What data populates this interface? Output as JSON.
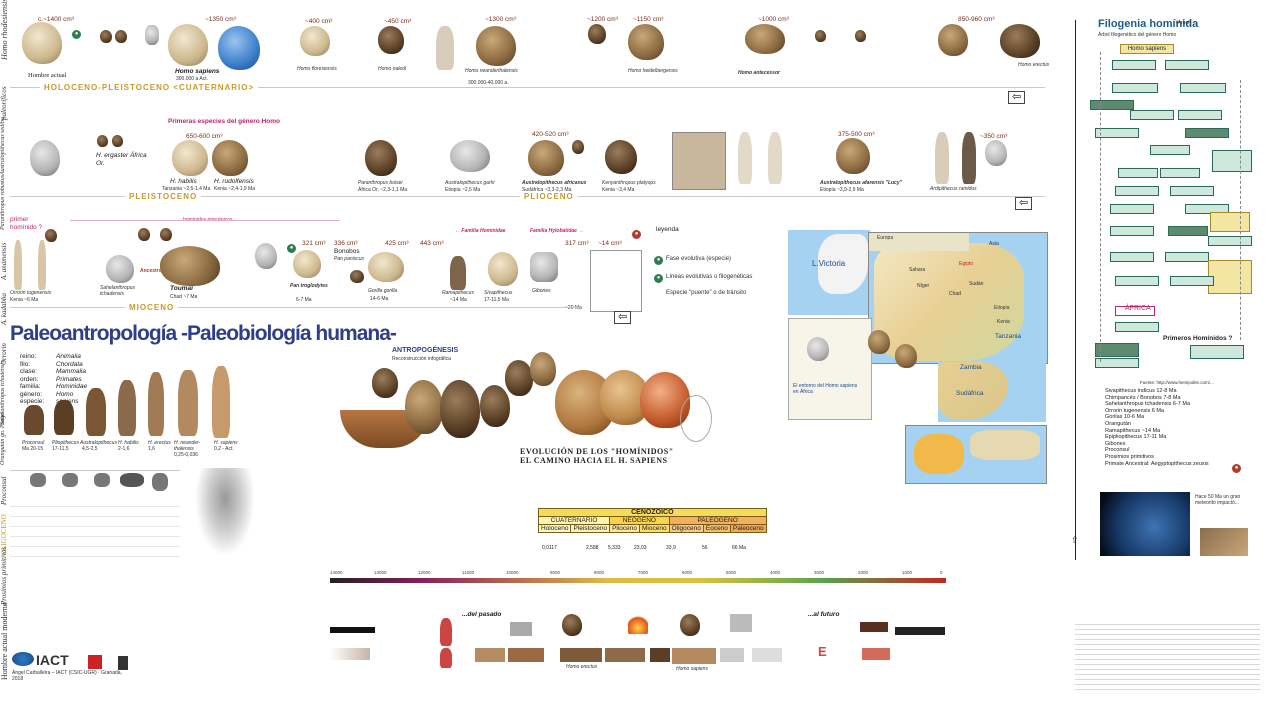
{
  "row1": {
    "items": [
      {
        "label": "Hombre actual",
        "size": "c.~1400 cm³"
      },
      {
        "label": "Homo sapiens",
        "size": "~1350 cm³",
        "date": "300.000 a Act."
      },
      {
        "label": "Homo floresiensis",
        "size": "~400 cm³"
      },
      {
        "label": "Homo naledi",
        "size": "~450 cm³"
      },
      {
        "label": "Homo neanderthalensis",
        "size": "~1300 cm³",
        "date": "300.000-40.000 a."
      },
      {
        "label": "Homo rhodesiensis",
        "size": "~1200 cm³"
      },
      {
        "label": "Homo heidelbergensis",
        "size": "~1150 cm³"
      },
      {
        "label": "Homo antecessor",
        "size": "~1000 cm³"
      },
      {
        "label": "Homo erectus",
        "size": "850-960 cm³"
      }
    ],
    "band": "HOLOCENO-PLEISTOCENO <CUATERNARIO>"
  },
  "row2": {
    "heading": "Primeras especies del género Homo",
    "items": [
      {
        "label": "H. ergaster África Or.",
        "size": ""
      },
      {
        "label": "H. habilis",
        "size": "650-600 cm³",
        "date": "Tanzania ~2,5-1,4 Ma"
      },
      {
        "label": "H. rudolfensis",
        "size": "",
        "date": "Kenia ~2,4-1,9 Ma"
      },
      {
        "label": "Paranthropus boisei",
        "size": "",
        "date": "África Or. ~2,3-1,1 Ma"
      },
      {
        "label": "Australopithecus garhi",
        "size": "",
        "date": "Etiopía ~2,5 Ma"
      },
      {
        "label": "Australopithecus africanus",
        "size": "420-520 cm³",
        "date": "Sudáfrica ~3,3-2,3 Ma"
      },
      {
        "label": "Kenyanthropus platyops",
        "size": "",
        "date": "Kenia ~3,4 Ma"
      },
      {
        "label": "Australopithecus afarensis \"Lucy\"",
        "size": "375-500 cm³",
        "date": "Etiopía ~3,9-2,9 Ma"
      },
      {
        "label": "Ardipithecus ramidus",
        "size": "~350 cm³",
        "date": "Etiopía ~4,4 Ma"
      }
    ],
    "band1": "PLEISTOCENO",
    "band2": "PLIOCENO"
  },
  "row3": {
    "primer": "primer homínido ?",
    "miocenicos": "homínidos miocénicos",
    "familia1": "← Familia Hominidae",
    "familia2": "Familia Hylobatidae →",
    "items": [
      {
        "label": "Orrorin tugenensis",
        "date": "Kenia ~6 Ma"
      },
      {
        "label": "Sahelanthropus tchadensis",
        "date": "Chad ~7 Ma"
      },
      {
        "label": "Toumaï"
      },
      {
        "label": "Pan troglodytes",
        "size": "321 cm³",
        "date": "6-7 Ma"
      },
      {
        "label": "Bonobos",
        "size": "336 cm³",
        "date": "Pan paniscus"
      },
      {
        "label": "Gorilla gorilla",
        "size": "425 cm³",
        "date": "14-6 Ma"
      },
      {
        "label": "Pongo",
        "size": "443 cm³",
        "date": "~14 Ma"
      },
      {
        "label": "Sivapithecus",
        "date": "17-11,5 Ma"
      },
      {
        "label": "Gibones",
        "size": "317 cm³"
      },
      {
        "label": "Proconsul",
        "size": "~14 cm³",
        "date": "~20 Ma"
      }
    ],
    "band": "MIOCENO",
    "legend": {
      "title": "leyenda",
      "items": [
        "Fase evolutiva (especie)",
        "Líneas evolutivas o filogenéticas",
        "Especie \"puente\" o de tránsito"
      ]
    }
  },
  "left": {
    "title": "Paleoantropología -Paleobiología humana-",
    "taxonomy": [
      [
        "reino:",
        "Animalia"
      ],
      [
        "filo:",
        "Chordata"
      ],
      [
        "clase:",
        "Mammalia"
      ],
      [
        "orden:",
        "Primates"
      ],
      [
        "familia:",
        "Hominidae"
      ],
      [
        "género:",
        "Homo"
      ],
      [
        "especie:",
        "sapiens"
      ]
    ],
    "vertical": "Hombre actual moderno",
    "figures": [
      {
        "name": "Proconsul",
        "date": "Ma 20-15"
      },
      {
        "name": "Pliopithecus",
        "date": "17-11,5"
      },
      {
        "name": "Australopithecus",
        "date": "4,5-2,5"
      },
      {
        "name": "H. habilis",
        "date": "2-1,6"
      },
      {
        "name": "H. erectus",
        "date": "1,6"
      },
      {
        "name": "H. neander-thalensis",
        "date": "0,25-0,036"
      },
      {
        "name": "H. sapiens",
        "date": "0,2 - Act."
      }
    ]
  },
  "center": {
    "antropogenesis": "ANTROPOGÉNESIS",
    "subtitle": "Reconstrucción infográfica",
    "evolucion1": "EVOLUCIÓN DE LOS \"HOMÍNIDOS\"",
    "evolucion2": "EL CAMINO HACIA EL H. SAPIENS"
  },
  "cenozoico": {
    "title": "CENOZOICO",
    "periods": [
      "CUATERNARIO",
      "NEÓGENO",
      "PALEÓGENO"
    ],
    "epochs": [
      "Holoceno",
      "Pleistoceno",
      "Plioceno",
      "Mioceno",
      "Oligoceno",
      "Eoceno",
      "Paleoceno"
    ],
    "ages": [
      "0,0117",
      "2,588",
      "5,333",
      "23,03",
      "33,9",
      "56",
      "66 Ma"
    ]
  },
  "timeline": {
    "ticks": [
      "14000",
      "13000",
      "12000",
      "11000",
      "10000",
      "9000",
      "8000",
      "7000",
      "6000",
      "5000",
      "4000",
      "3000",
      "2000",
      "1000",
      "0"
    ]
  },
  "bottom": {
    "pasado": "...del pasado",
    "futuro": "...al futuro",
    "homo_erectus": "Homo erectus",
    "homo_sapiens": "Homo sapiens",
    "iact": "IACT",
    "credits": "Ángel Carballeira – IACT (CSIC-UGR) · Granada, 2018"
  },
  "map": {
    "lake": "L.Victoria",
    "places": [
      "Europa",
      "Asia",
      "Sudán",
      "Egipto",
      "Etiopía",
      "Kenia",
      "Tanzania",
      "Zambia",
      "Sudáfrica",
      "Chad",
      "Níger",
      "Sahara"
    ],
    "caption": "El entorno del Homo sapiens en África"
  },
  "right": {
    "title": "Filogenia homínida",
    "title_sup": "(Árbol)",
    "subtitle": "Árbol filogenético del género Homo",
    "top_node": "Homo sapiens",
    "africa": "ÁFRICA",
    "primeros": "Primeros Homínidos ?",
    "list": [
      "Sivapithecus indicus 12-8 Ma",
      "Chimpancés / Bonobos 7-8 Ma",
      "Sahelanthropus tchadensis 6-7 Ma",
      "Orrorin tugenensis 6 Ma",
      "Gorilas 10-6 Ma",
      "Orangután",
      "Ramapithecus ~14 Ma",
      "Epipliopithecus 17-11 Ma",
      "Gibones",
      "Proconsul",
      "Prosimios primitivos",
      "Primate Ancestral: Aegyptopithecus zeuxis"
    ],
    "earth_caption": "Hace 50 Ma un gran meteorito impactó...",
    "fuente": "Fuente: http://www.hemipolite.com/..."
  }
}
